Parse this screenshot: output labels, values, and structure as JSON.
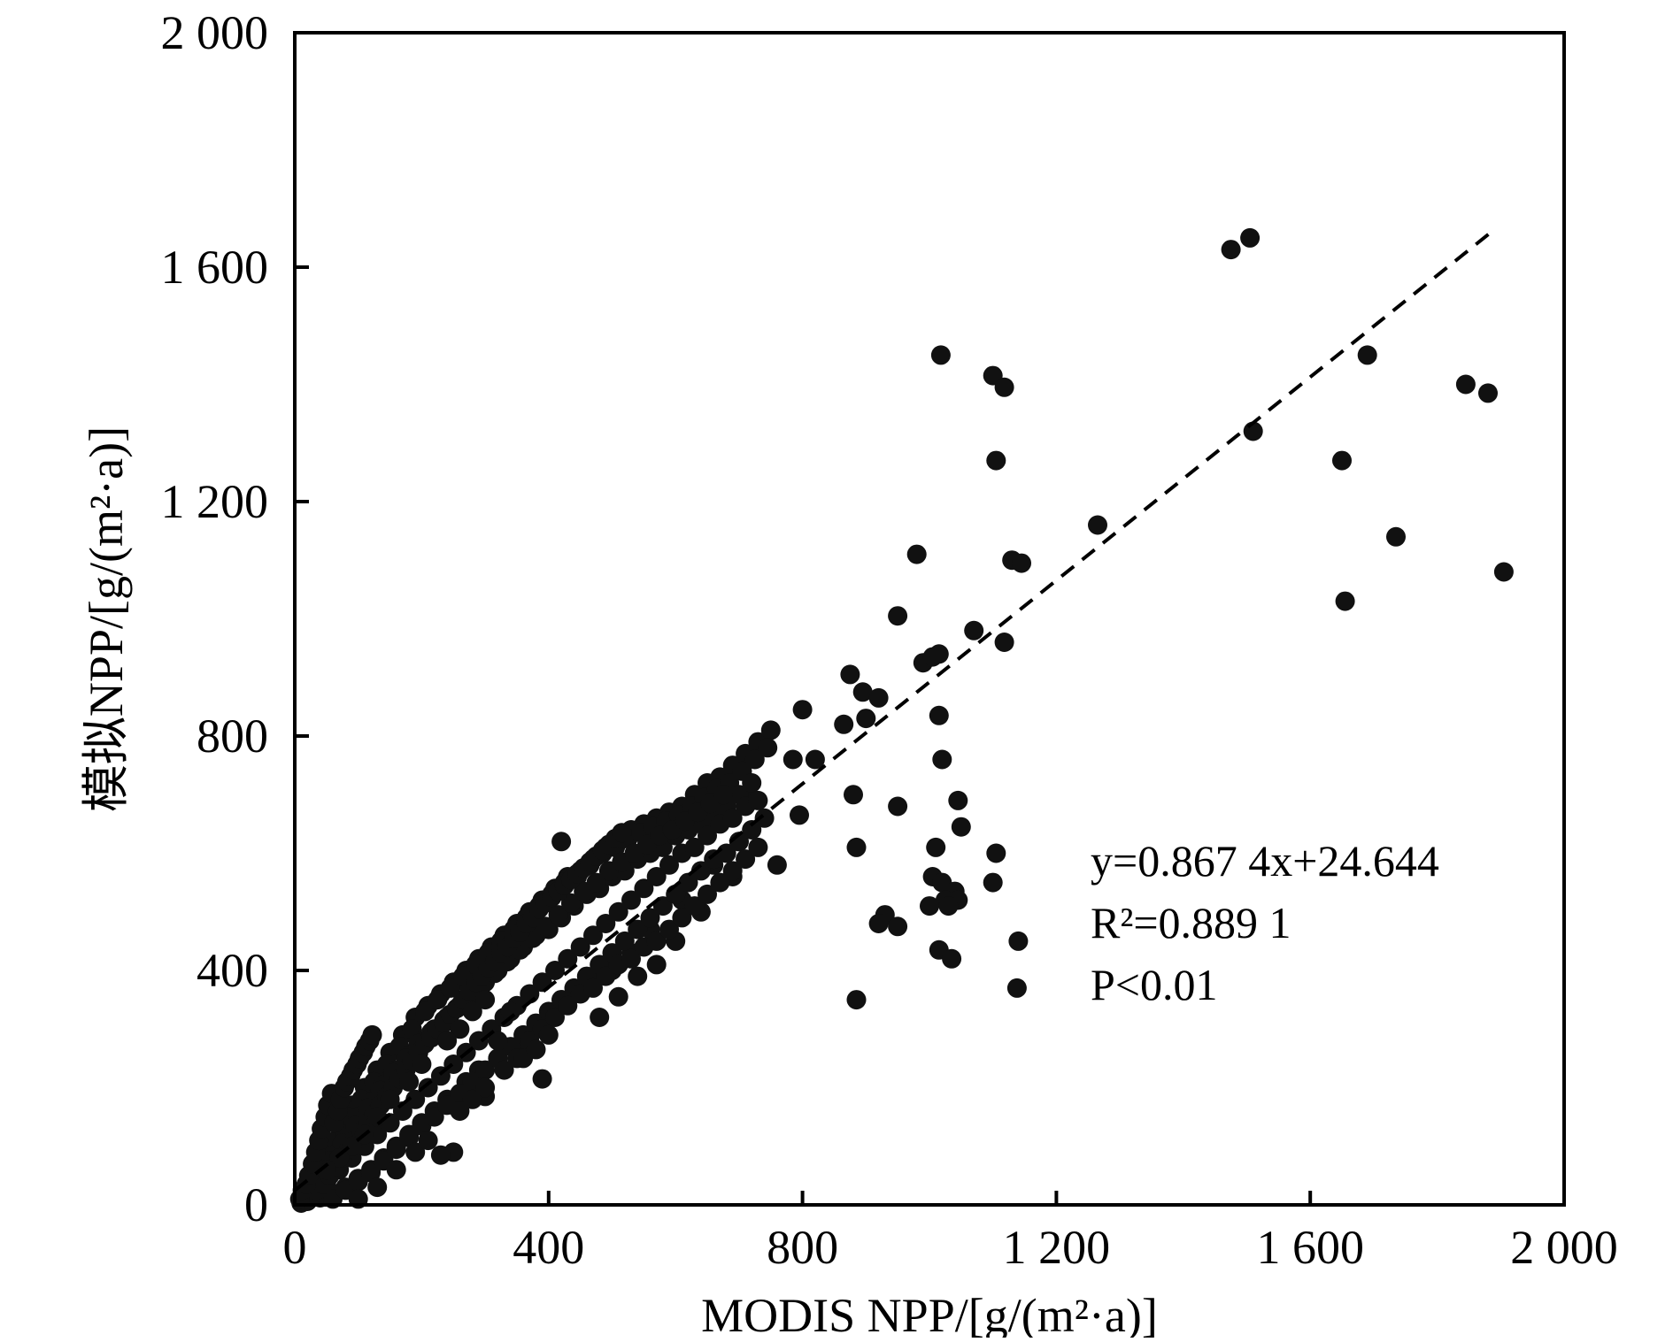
{
  "chart_data": {
    "type": "scatter",
    "xlabel": "MODIS NPP/[g/(m²·a)]",
    "ylabel": "模拟NPP/[g/(m²·a)]",
    "xlim": [
      0,
      2000
    ],
    "ylim": [
      0,
      2000
    ],
    "x_ticks": [
      "0",
      "400",
      "800",
      "1 200",
      "1 600",
      "2 000"
    ],
    "y_ticks": [
      "0",
      "400",
      "800",
      "1 200",
      "1 600",
      "2 000"
    ],
    "grid": false,
    "marker_color": "#111111",
    "fit_line": {
      "slope": 0.8674,
      "intercept": 24.644,
      "x_range": [
        0,
        1890
      ],
      "style": "dashed"
    },
    "annotations": {
      "equation": "y=0.867 4x+24.644",
      "r_squared": "R²=0.889 1",
      "p_value": "P<0.01"
    },
    "points": [
      [
        1475,
        1630
      ],
      [
        1505,
        1650
      ],
      [
        1018,
        1450
      ],
      [
        1100,
        1415
      ],
      [
        1118,
        1395
      ],
      [
        1690,
        1450
      ],
      [
        1845,
        1400
      ],
      [
        1880,
        1385
      ],
      [
        1510,
        1320
      ],
      [
        1105,
        1270
      ],
      [
        1650,
        1270
      ],
      [
        1265,
        1160
      ],
      [
        980,
        1110
      ],
      [
        1130,
        1100
      ],
      [
        1145,
        1095
      ],
      [
        1735,
        1140
      ],
      [
        1905,
        1080
      ],
      [
        1655,
        1030
      ],
      [
        950,
        1005
      ],
      [
        1070,
        980
      ],
      [
        1118,
        960
      ],
      [
        875,
        905
      ],
      [
        990,
        925
      ],
      [
        1005,
        935
      ],
      [
        1015,
        940
      ],
      [
        895,
        875
      ],
      [
        920,
        865
      ],
      [
        800,
        845
      ],
      [
        900,
        830
      ],
      [
        1015,
        835
      ],
      [
        865,
        820
      ],
      [
        1020,
        760
      ],
      [
        820,
        760
      ],
      [
        785,
        760
      ],
      [
        880,
        700
      ],
      [
        950,
        680
      ],
      [
        1045,
        690
      ],
      [
        795,
        665
      ],
      [
        1050,
        645
      ],
      [
        1010,
        610
      ],
      [
        885,
        610
      ],
      [
        1105,
        600
      ],
      [
        1005,
        560
      ],
      [
        1020,
        550
      ],
      [
        1100,
        550
      ],
      [
        1040,
        535
      ],
      [
        1025,
        520
      ],
      [
        1000,
        510
      ],
      [
        1045,
        520
      ],
      [
        930,
        495
      ],
      [
        920,
        480
      ],
      [
        950,
        475
      ],
      [
        1030,
        510
      ],
      [
        1140,
        450
      ],
      [
        1015,
        435
      ],
      [
        1035,
        420
      ],
      [
        1138,
        370
      ],
      [
        885,
        350
      ],
      [
        760,
        580
      ],
      [
        740,
        660
      ],
      [
        720,
        690
      ],
      [
        700,
        620
      ],
      [
        420,
        620
      ],
      [
        300,
        185
      ],
      [
        390,
        215
      ],
      [
        250,
        90
      ],
      [
        230,
        85
      ],
      [
        420,
        350
      ],
      [
        480,
        320
      ],
      [
        510,
        355
      ],
      [
        540,
        390
      ],
      [
        570,
        410
      ],
      [
        600,
        450
      ],
      [
        640,
        500
      ],
      [
        690,
        560
      ],
      [
        660,
        580
      ],
      [
        610,
        520
      ],
      [
        560,
        470
      ],
      [
        530,
        430
      ],
      [
        500,
        400
      ],
      [
        470,
        380
      ],
      [
        440,
        360
      ],
      [
        410,
        330
      ],
      [
        380,
        300
      ],
      [
        350,
        270
      ],
      [
        320,
        250
      ],
      [
        290,
        230
      ],
      [
        270,
        210
      ],
      [
        240,
        180
      ],
      [
        220,
        160
      ],
      [
        200,
        140
      ],
      [
        180,
        120
      ],
      [
        160,
        100
      ],
      [
        140,
        80
      ],
      [
        120,
        60
      ],
      [
        100,
        45
      ],
      [
        80,
        30
      ],
      [
        60,
        20
      ],
      [
        40,
        12
      ],
      [
        20,
        6
      ],
      [
        10,
        3
      ],
      [
        30,
        60
      ],
      [
        50,
        100
      ],
      [
        70,
        140
      ],
      [
        90,
        170
      ],
      [
        110,
        200
      ],
      [
        130,
        230
      ],
      [
        150,
        260
      ],
      [
        170,
        290
      ],
      [
        190,
        320
      ],
      [
        210,
        340
      ],
      [
        230,
        360
      ],
      [
        250,
        380
      ],
      [
        270,
        400
      ],
      [
        290,
        420
      ],
      [
        310,
        440
      ],
      [
        330,
        460
      ],
      [
        350,
        480
      ],
      [
        370,
        500
      ],
      [
        390,
        520
      ],
      [
        410,
        540
      ],
      [
        430,
        560
      ],
      [
        450,
        570
      ],
      [
        470,
        590
      ],
      [
        490,
        610
      ],
      [
        510,
        620
      ],
      [
        530,
        640
      ],
      [
        550,
        650
      ],
      [
        570,
        660
      ],
      [
        590,
        670
      ],
      [
        610,
        680
      ],
      [
        630,
        700
      ],
      [
        650,
        720
      ],
      [
        670,
        730
      ],
      [
        690,
        750
      ],
      [
        710,
        770
      ],
      [
        730,
        790
      ],
      [
        750,
        810
      ],
      [
        25,
        40
      ],
      [
        45,
        70
      ],
      [
        65,
        110
      ],
      [
        85,
        150
      ],
      [
        105,
        180
      ],
      [
        125,
        210
      ],
      [
        145,
        240
      ],
      [
        165,
        270
      ],
      [
        185,
        300
      ],
      [
        205,
        330
      ],
      [
        225,
        350
      ],
      [
        245,
        370
      ],
      [
        265,
        390
      ],
      [
        285,
        410
      ],
      [
        305,
        430
      ],
      [
        325,
        450
      ],
      [
        345,
        470
      ],
      [
        365,
        490
      ],
      [
        385,
        510
      ],
      [
        405,
        530
      ],
      [
        425,
        550
      ],
      [
        445,
        560
      ],
      [
        465,
        580
      ],
      [
        485,
        600
      ],
      [
        505,
        610
      ],
      [
        525,
        625
      ],
      [
        545,
        635
      ],
      [
        565,
        645
      ],
      [
        585,
        655
      ],
      [
        605,
        665
      ],
      [
        625,
        680
      ],
      [
        645,
        695
      ],
      [
        665,
        710
      ],
      [
        685,
        720
      ],
      [
        705,
        740
      ],
      [
        725,
        760
      ],
      [
        745,
        780
      ],
      [
        20,
        30
      ],
      [
        40,
        55
      ],
      [
        60,
        85
      ],
      [
        80,
        120
      ],
      [
        100,
        150
      ],
      [
        120,
        175
      ],
      [
        140,
        205
      ],
      [
        160,
        230
      ],
      [
        180,
        255
      ],
      [
        200,
        280
      ],
      [
        220,
        300
      ],
      [
        240,
        320
      ],
      [
        260,
        340
      ],
      [
        280,
        360
      ],
      [
        300,
        380
      ],
      [
        320,
        400
      ],
      [
        340,
        420
      ],
      [
        360,
        440
      ],
      [
        380,
        460
      ],
      [
        400,
        470
      ],
      [
        420,
        490
      ],
      [
        440,
        510
      ],
      [
        460,
        530
      ],
      [
        480,
        540
      ],
      [
        500,
        560
      ],
      [
        520,
        570
      ],
      [
        540,
        590
      ],
      [
        560,
        600
      ],
      [
        580,
        610
      ],
      [
        600,
        630
      ],
      [
        620,
        640
      ],
      [
        640,
        650
      ],
      [
        660,
        660
      ],
      [
        680,
        680
      ],
      [
        700,
        700
      ],
      [
        720,
        720
      ],
      [
        30,
        20
      ],
      [
        50,
        40
      ],
      [
        70,
        60
      ],
      [
        90,
        80
      ],
      [
        110,
        100
      ],
      [
        130,
        120
      ],
      [
        150,
        140
      ],
      [
        170,
        160
      ],
      [
        190,
        180
      ],
      [
        210,
        200
      ],
      [
        230,
        220
      ],
      [
        250,
        240
      ],
      [
        270,
        260
      ],
      [
        290,
        280
      ],
      [
        310,
        300
      ],
      [
        330,
        320
      ],
      [
        350,
        340
      ],
      [
        370,
        360
      ],
      [
        390,
        380
      ],
      [
        410,
        400
      ],
      [
        430,
        420
      ],
      [
        450,
        440
      ],
      [
        470,
        460
      ],
      [
        490,
        480
      ],
      [
        510,
        500
      ],
      [
        530,
        520
      ],
      [
        550,
        540
      ],
      [
        570,
        560
      ],
      [
        590,
        580
      ],
      [
        610,
        600
      ],
      [
        630,
        610
      ],
      [
        650,
        630
      ],
      [
        670,
        650
      ],
      [
        690,
        660
      ],
      [
        710,
        680
      ],
      [
        730,
        690
      ],
      [
        60,
        10
      ],
      [
        80,
        25
      ],
      [
        100,
        40
      ],
      [
        120,
        55
      ],
      [
        140,
        75
      ],
      [
        160,
        95
      ],
      [
        180,
        115
      ],
      [
        200,
        135
      ],
      [
        220,
        150
      ],
      [
        240,
        170
      ],
      [
        260,
        190
      ],
      [
        280,
        210
      ],
      [
        300,
        230
      ],
      [
        320,
        250
      ],
      [
        340,
        270
      ],
      [
        360,
        290
      ],
      [
        380,
        310
      ],
      [
        400,
        330
      ],
      [
        420,
        350
      ],
      [
        440,
        370
      ],
      [
        460,
        390
      ],
      [
        480,
        410
      ],
      [
        500,
        430
      ],
      [
        520,
        450
      ],
      [
        540,
        470
      ],
      [
        560,
        490
      ],
      [
        580,
        510
      ],
      [
        600,
        530
      ],
      [
        620,
        550
      ],
      [
        640,
        570
      ],
      [
        660,
        590
      ],
      [
        680,
        600
      ],
      [
        700,
        620
      ],
      [
        720,
        640
      ],
      [
        35,
        45
      ],
      [
        55,
        75
      ],
      [
        75,
        105
      ],
      [
        95,
        135
      ],
      [
        115,
        165
      ],
      [
        135,
        195
      ],
      [
        155,
        225
      ],
      [
        175,
        250
      ],
      [
        195,
        275
      ],
      [
        215,
        295
      ],
      [
        235,
        315
      ],
      [
        255,
        335
      ],
      [
        275,
        355
      ],
      [
        295,
        375
      ],
      [
        315,
        395
      ],
      [
        335,
        415
      ],
      [
        355,
        435
      ],
      [
        375,
        455
      ],
      [
        395,
        475
      ],
      [
        415,
        495
      ],
      [
        435,
        515
      ],
      [
        455,
        535
      ],
      [
        475,
        550
      ],
      [
        495,
        570
      ],
      [
        515,
        585
      ],
      [
        535,
        600
      ],
      [
        555,
        615
      ],
      [
        575,
        630
      ],
      [
        595,
        640
      ],
      [
        615,
        655
      ],
      [
        635,
        670
      ],
      [
        655,
        685
      ],
      [
        675,
        700
      ],
      [
        15,
        20
      ],
      [
        25,
        15
      ],
      [
        35,
        25
      ],
      [
        45,
        35
      ],
      [
        55,
        50
      ],
      [
        65,
        65
      ],
      [
        75,
        80
      ],
      [
        85,
        95
      ],
      [
        95,
        110
      ],
      [
        105,
        125
      ],
      [
        115,
        140
      ],
      [
        125,
        155
      ],
      [
        135,
        170
      ],
      [
        145,
        185
      ],
      [
        155,
        200
      ],
      [
        165,
        215
      ],
      [
        175,
        230
      ],
      [
        185,
        245
      ],
      [
        195,
        260
      ],
      [
        205,
        275
      ],
      [
        215,
        285
      ],
      [
        225,
        300
      ],
      [
        235,
        310
      ],
      [
        245,
        325
      ],
      [
        255,
        335
      ],
      [
        265,
        350
      ],
      [
        275,
        365
      ],
      [
        285,
        380
      ],
      [
        295,
        390
      ],
      [
        305,
        405
      ],
      [
        315,
        415
      ],
      [
        325,
        430
      ],
      [
        335,
        440
      ],
      [
        345,
        455
      ],
      [
        355,
        465
      ],
      [
        365,
        480
      ],
      [
        375,
        490
      ],
      [
        385,
        505
      ],
      [
        395,
        515
      ],
      [
        405,
        525
      ],
      [
        415,
        535
      ],
      [
        425,
        545
      ],
      [
        435,
        555
      ],
      [
        445,
        565
      ],
      [
        455,
        575
      ],
      [
        465,
        585
      ],
      [
        475,
        595
      ],
      [
        485,
        605
      ],
      [
        495,
        615
      ],
      [
        505,
        625
      ],
      [
        515,
        635
      ],
      [
        100,
        10
      ],
      [
        130,
        30
      ],
      [
        160,
        60
      ],
      [
        190,
        90
      ],
      [
        210,
        110
      ],
      [
        260,
        160
      ],
      [
        280,
        180
      ],
      [
        300,
        200
      ],
      [
        330,
        230
      ],
      [
        350,
        250
      ],
      [
        370,
        280
      ],
      [
        390,
        300
      ],
      [
        410,
        320
      ],
      [
        430,
        340
      ],
      [
        450,
        360
      ],
      [
        470,
        370
      ],
      [
        490,
        390
      ],
      [
        510,
        410
      ],
      [
        530,
        420
      ],
      [
        550,
        440
      ],
      [
        570,
        450
      ],
      [
        590,
        470
      ],
      [
        610,
        490
      ],
      [
        630,
        510
      ],
      [
        650,
        530
      ],
      [
        670,
        550
      ],
      [
        690,
        570
      ],
      [
        710,
        590
      ],
      [
        730,
        610
      ],
      [
        360,
        250
      ],
      [
        380,
        265
      ],
      [
        400,
        290
      ],
      [
        320,
        280
      ],
      [
        340,
        330
      ],
      [
        280,
        330
      ],
      [
        260,
        300
      ],
      [
        300,
        350
      ],
      [
        240,
        280
      ],
      [
        200,
        240
      ],
      [
        180,
        210
      ],
      [
        150,
        180
      ],
      [
        130,
        150
      ],
      [
        110,
        120
      ],
      [
        90,
        100
      ],
      [
        70,
        80
      ],
      [
        50,
        60
      ],
      [
        8,
        10
      ],
      [
        12,
        25
      ],
      [
        18,
        35
      ],
      [
        22,
        50
      ],
      [
        28,
        70
      ],
      [
        33,
        90
      ],
      [
        38,
        110
      ],
      [
        42,
        130
      ],
      [
        48,
        150
      ],
      [
        52,
        170
      ],
      [
        58,
        190
      ],
      [
        62,
        140
      ],
      [
        68,
        160
      ],
      [
        72,
        180
      ],
      [
        78,
        200
      ],
      [
        82,
        210
      ],
      [
        88,
        220
      ],
      [
        92,
        230
      ],
      [
        98,
        240
      ],
      [
        102,
        250
      ],
      [
        108,
        260
      ],
      [
        112,
        270
      ],
      [
        118,
        280
      ],
      [
        122,
        290
      ]
    ]
  }
}
